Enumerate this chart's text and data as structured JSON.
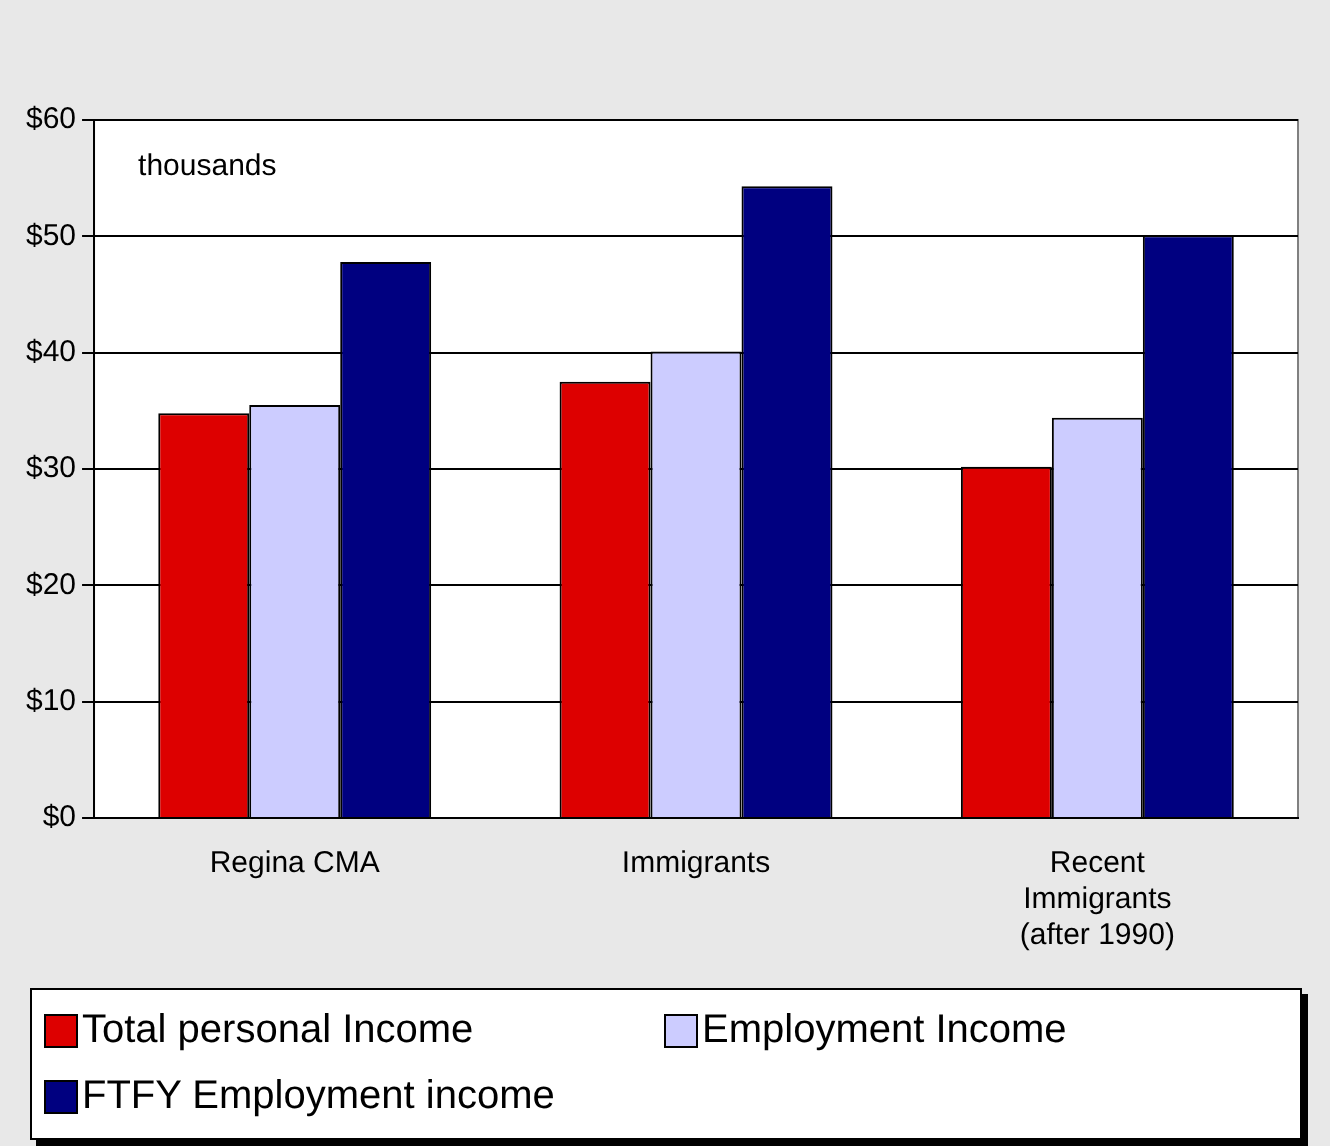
{
  "chart_data": {
    "type": "bar",
    "categories": [
      "Regina CMA",
      "Immigrants",
      "Recent Immigrants (after 1990)"
    ],
    "series": [
      {
        "name": "Total personal Income",
        "color": "#dd0000",
        "values": [
          34.8,
          37.5,
          30.2
        ]
      },
      {
        "name": "Employment Income",
        "color": "#ccccff",
        "values": [
          35.5,
          40.1,
          34.4
        ]
      },
      {
        "name": "FTFY Employment income",
        "color": "#000080",
        "values": [
          47.8,
          54.3,
          50.1
        ]
      }
    ],
    "ylim": [
      0,
      60
    ],
    "yticks": [
      {
        "value": 0,
        "label": "$0"
      },
      {
        "value": 10,
        "label": "$10"
      },
      {
        "value": 20,
        "label": "$20"
      },
      {
        "value": 30,
        "label": "$30"
      },
      {
        "value": 40,
        "label": "$40"
      },
      {
        "value": 50,
        "label": "$50"
      },
      {
        "value": 60,
        "label": "$60"
      }
    ],
    "annotations": [
      "thousands"
    ],
    "grid": "y",
    "legend": "bottom"
  }
}
